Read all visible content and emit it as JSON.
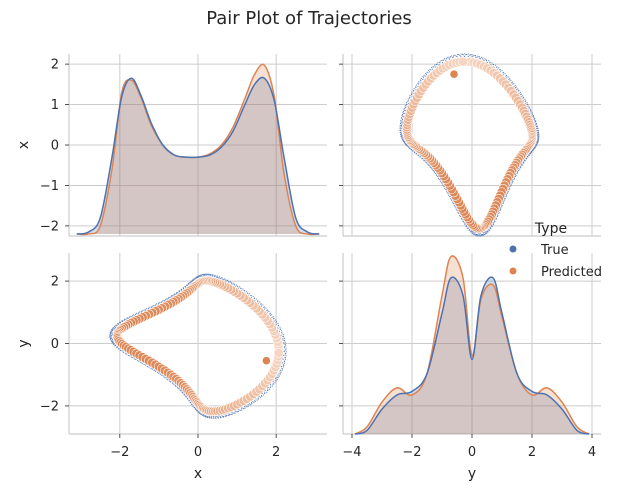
{
  "chart_data": {
    "type": "pairplot",
    "title": "Pair Plot of Trajectories",
    "variables": [
      "x",
      "y"
    ],
    "legend": {
      "title": "Type",
      "entries": [
        {
          "label": "True",
          "color": "#4c72b0"
        },
        {
          "label": "Predicted",
          "color": "#dd8452"
        }
      ]
    },
    "panels": {
      "x_x": {
        "type": "kde",
        "xlim": [
          -3.3,
          3.3
        ],
        "ylim": [
          -2.25,
          2.25
        ],
        "x_ticks": [
          -2,
          0,
          2
        ],
        "y_ticks": [
          -2,
          -1,
          0,
          1,
          2
        ],
        "y_tick_labels": [
          "−2",
          "−1",
          "0",
          "1",
          "2"
        ],
        "diag_scale": {
          "baseline": -2.2,
          "peak_true": 1.65,
          "peak_pred": 1.97,
          "center_true": -0.3,
          "center_pred": -0.3
        },
        "series": {
          "True": {
            "x": [
              -3.1,
              -2.8,
              -2.5,
              -2.2,
              -1.95,
              -1.7,
              -1.45,
              -1.2,
              -0.9,
              -0.6,
              -0.3,
              0.0,
              0.3,
              0.6,
              0.9,
              1.2,
              1.45,
              1.7,
              1.95,
              2.2,
              2.5,
              2.8,
              3.1
            ],
            "y": [
              -2.2,
              -2.15,
              -1.8,
              -0.3,
              1.2,
              1.65,
              1.2,
              0.55,
              0.0,
              -0.25,
              -0.3,
              -0.3,
              -0.25,
              -0.05,
              0.35,
              1.0,
              1.5,
              1.65,
              1.1,
              -0.3,
              -1.8,
              -2.15,
              -2.2
            ]
          },
          "Predicted": {
            "x": [
              -3.1,
              -2.8,
              -2.5,
              -2.2,
              -1.95,
              -1.7,
              -1.45,
              -1.2,
              -0.9,
              -0.6,
              -0.3,
              0.0,
              0.3,
              0.6,
              0.9,
              1.2,
              1.45,
              1.7,
              1.95,
              2.2,
              2.5,
              2.8,
              3.1
            ],
            "y": [
              -2.2,
              -2.2,
              -2.0,
              -0.6,
              1.3,
              1.6,
              1.15,
              0.5,
              0.0,
              -0.25,
              -0.3,
              -0.3,
              -0.22,
              0.0,
              0.45,
              1.15,
              1.75,
              1.97,
              1.2,
              -0.7,
              -2.0,
              -2.2,
              -2.2
            ]
          }
        }
      },
      "y_x": {
        "type": "scatter",
        "xlim": [
          -3.3,
          3.3
        ],
        "ylim": [
          -2.25,
          2.25
        ],
        "start_point": {
          "x": -0.6,
          "y": 1.75
        }
      },
      "x_y": {
        "type": "scatter",
        "xlim": [
          -3.3,
          3.3
        ],
        "ylim": [
          -2.9,
          2.9
        ],
        "y_ticks": [
          -2,
          0,
          2
        ],
        "y_tick_labels": [
          "−2",
          "0",
          "2"
        ],
        "start_point": {
          "x": 1.75,
          "y": -0.55
        }
      },
      "y_y": {
        "type": "kde",
        "xlim": [
          -4.3,
          4.3
        ],
        "x_ticks": [
          -4,
          -2,
          0,
          2,
          4
        ],
        "x_tick_labels": [
          "−4",
          "−2",
          "0",
          "2",
          "4"
        ],
        "series": {
          "True": {
            "x": [
              -3.9,
              -3.5,
              -3.0,
              -2.5,
              -2.0,
              -1.5,
              -1.0,
              -0.7,
              -0.3,
              0.0,
              0.3,
              0.7,
              1.0,
              1.5,
              2.0,
              2.5,
              3.0,
              3.5,
              3.9
            ],
            "y": [
              0.0,
              0.05,
              0.35,
              0.55,
              0.6,
              0.85,
              1.7,
              2.2,
              1.95,
              1.05,
              1.95,
              2.2,
              1.7,
              0.85,
              0.6,
              0.55,
              0.35,
              0.05,
              0.0
            ]
          },
          "Predicted": {
            "x": [
              -3.9,
              -3.5,
              -3.0,
              -2.5,
              -2.0,
              -1.5,
              -1.0,
              -0.7,
              -0.3,
              0.0,
              0.3,
              0.7,
              1.0,
              1.5,
              2.0,
              2.5,
              3.0,
              3.5,
              3.9
            ],
            "y": [
              0.0,
              0.1,
              0.45,
              0.65,
              0.55,
              0.85,
              1.95,
              2.5,
              2.2,
              1.1,
              1.9,
              2.1,
              1.65,
              0.85,
              0.55,
              0.65,
              0.45,
              0.1,
              0.0
            ]
          }
        },
        "density_ylim": [
          0,
          2.55
        ]
      }
    },
    "axis_labels": {
      "bottom_left": "x",
      "bottom_right": "y",
      "left_top": "x",
      "left_bottom": "y"
    },
    "bottom_left_ticks": [
      -2,
      0,
      2
    ],
    "bottom_left_tick_labels": [
      "−2",
      "0",
      "2"
    ]
  }
}
